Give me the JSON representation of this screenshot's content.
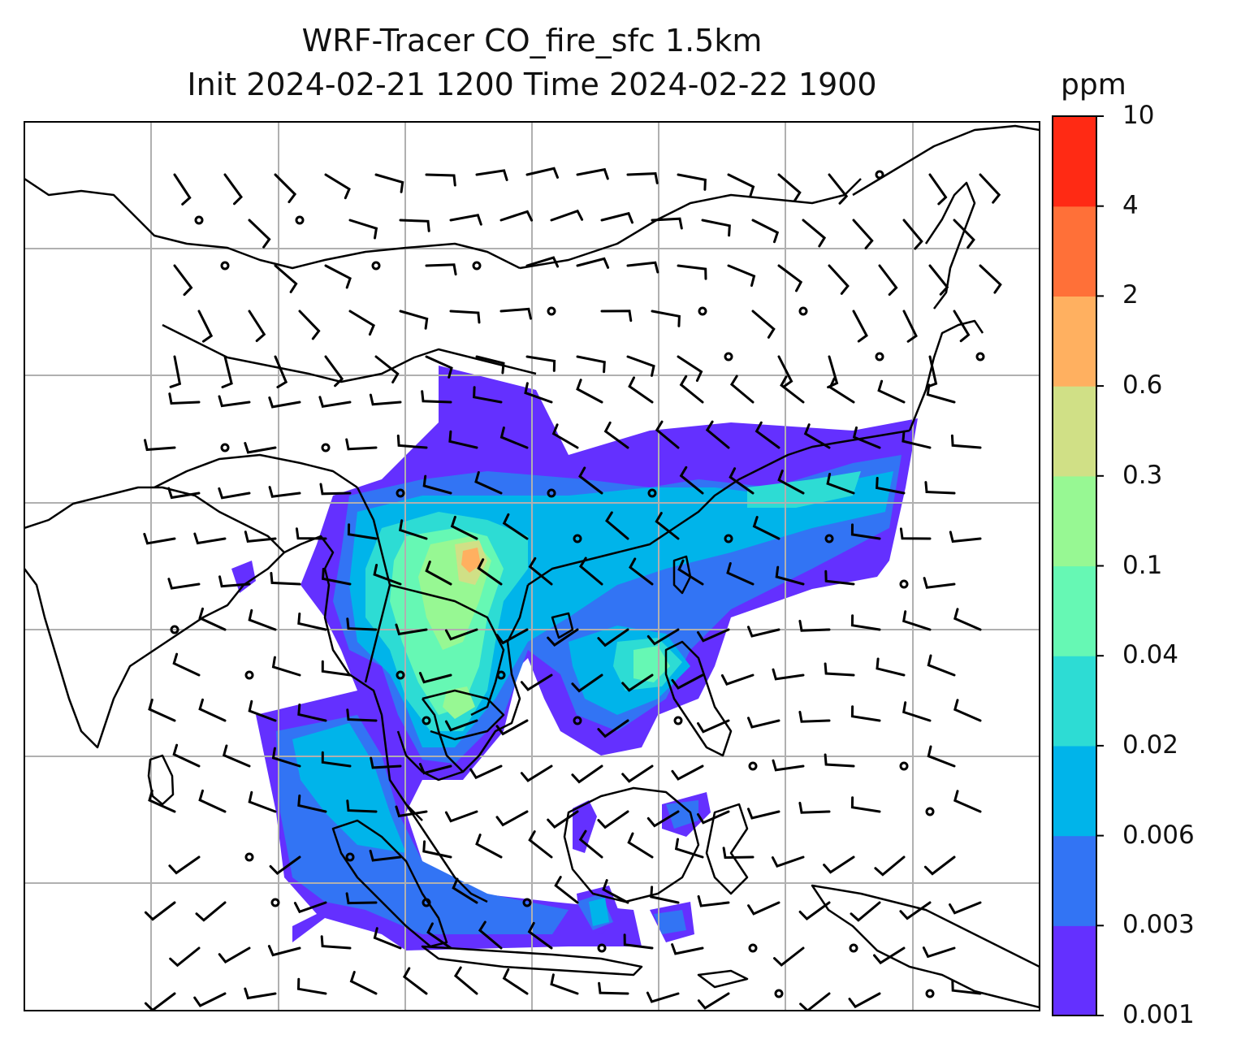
{
  "title": "WRF-Tracer CO_fire_sfc 1.5km",
  "subtitle": "Init 2024-02-21 1200 Time 2024-02-22 1900",
  "chart_data": {
    "type": "heatmap",
    "variable": "CO_fire_sfc",
    "overlay": "wind barbs",
    "grid": true,
    "colorbar": {
      "unit": "ppm",
      "ticks": [
        "0.001",
        "0.003",
        "0.006",
        "0.02",
        "0.04",
        "0.1",
        "0.3",
        "0.6",
        "2",
        "4",
        "10"
      ],
      "colors": [
        "#6430ff",
        "#3274f4",
        "#00b4ea",
        "#2ddcd4",
        "#66f8b4",
        "#97f893",
        "#d0e086",
        "#ffb060",
        "#ff7038",
        "#ff2a14"
      ]
    }
  }
}
